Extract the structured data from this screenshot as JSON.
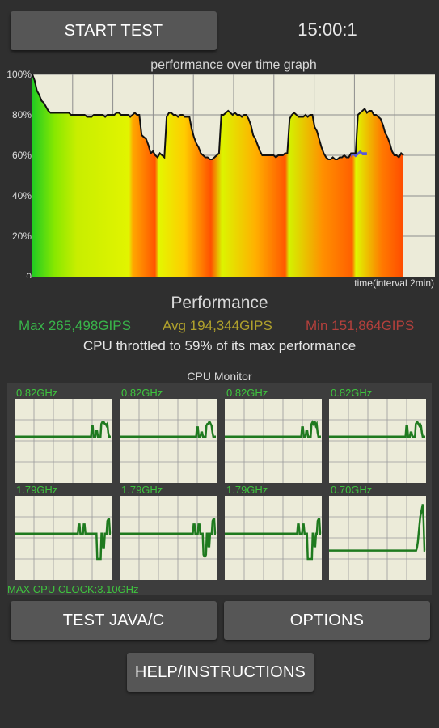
{
  "header": {
    "start_button": "START TEST",
    "timer": "15:00:1"
  },
  "graph": {
    "title": "performance over time graph",
    "y_ticks": [
      "100%",
      "80%",
      "60%",
      "40%",
      "20%",
      "0"
    ],
    "x_label": "time(interval 2min)"
  },
  "performance": {
    "title": "Performance",
    "max": "Max 265,498GIPS",
    "avg": "Avg 194,344GIPS",
    "min": "Min 151,864GIPS",
    "throttle_text": "CPU throttled to 59% of its max performance"
  },
  "chart_data": {
    "type": "line",
    "y_unit": "%",
    "ylim": [
      0,
      100
    ],
    "y": [
      100,
      97,
      92,
      90,
      87,
      86,
      84,
      82,
      81,
      81,
      81,
      81,
      81,
      81,
      81,
      81,
      81,
      80,
      80,
      80,
      80,
      80,
      80,
      80,
      79,
      79,
      79,
      80,
      80,
      80,
      80,
      80,
      79,
      80,
      80,
      80,
      80,
      81,
      81,
      80,
      80,
      80,
      80,
      79,
      80,
      81,
      80,
      80,
      70,
      69,
      68,
      65,
      61,
      62,
      60,
      59,
      61,
      60,
      59,
      79,
      81,
      81,
      80,
      80,
      79,
      80,
      80,
      79,
      79,
      79,
      73,
      69,
      66,
      64,
      61,
      60,
      59,
      59,
      58,
      58,
      59,
      60,
      61,
      80,
      80,
      81,
      82,
      81,
      80,
      81,
      80,
      80,
      79,
      80,
      80,
      78,
      75,
      70,
      68,
      65,
      62,
      60,
      60,
      60,
      60,
      60,
      60,
      59,
      60,
      60,
      60,
      61,
      61,
      78,
      80,
      81,
      80,
      79,
      79,
      79,
      80,
      79,
      80,
      80,
      74,
      72,
      68,
      64,
      61,
      59,
      58,
      58,
      59,
      58,
      58,
      59,
      59,
      60,
      59,
      59,
      61,
      61,
      61,
      80,
      81,
      82,
      83,
      81,
      82,
      82,
      80,
      80,
      79,
      78,
      75,
      71,
      69,
      66,
      62,
      60,
      60,
      59,
      61,
      60
    ],
    "throttle_series_y": [
      59,
      60,
      59,
      60,
      61,
      60,
      60,
      60
    ]
  },
  "cpu_monitor": {
    "title": "CPU Monitor",
    "cores": [
      {
        "freq": "0.82GHz",
        "trace": [
          0.55,
          0.55,
          0.55,
          0.55,
          0.55,
          0.55,
          0.55,
          0.55,
          0.55,
          0.55,
          0.55,
          0.55,
          0.55,
          0.55,
          0.55,
          0.55,
          0.55,
          0.55,
          0.55,
          0.55,
          0.55,
          0.55,
          0.55,
          0.55,
          0.55,
          0.55,
          0.55,
          0.55,
          0.55,
          0.55,
          0.55,
          0.55,
          0.55,
          0.55,
          0.55,
          0.55,
          0.55,
          0.55,
          0.55,
          0.55,
          0.55,
          0.55,
          0.55,
          0.55,
          0.55,
          0.55,
          0.55,
          0.55,
          0.55,
          0.55,
          0.55,
          0.55,
          0.55,
          0.55,
          0.55,
          0.55,
          0.55,
          0.55,
          0.55,
          0.55,
          0.55,
          0.55,
          0.55,
          0.55,
          0.55,
          0.55,
          0.55,
          0.55,
          0.55,
          0.55,
          0.55,
          0.55,
          0.55,
          0.55,
          0.55,
          0.55,
          0.55,
          0.55,
          0.55,
          0.55,
          0.55,
          0.55,
          0.55,
          0.55,
          0.55,
          0.55,
          0.55,
          0.55,
          0.55,
          0.55,
          0.67,
          0.67,
          0.55,
          0.55,
          0.55,
          0.62,
          0.62,
          0.55,
          0.55,
          0.55,
          0.55,
          0.7,
          0.72,
          0.72,
          0.72,
          0.7,
          0.7,
          0.68,
          0.7,
          0.6,
          0.55,
          0.55,
          0.55
        ]
      },
      {
        "freq": "0.82GHz",
        "trace": [
          0.55,
          0.55,
          0.55,
          0.55,
          0.55,
          0.55,
          0.55,
          0.55,
          0.55,
          0.55,
          0.55,
          0.55,
          0.55,
          0.55,
          0.55,
          0.55,
          0.55,
          0.55,
          0.55,
          0.55,
          0.55,
          0.55,
          0.55,
          0.55,
          0.55,
          0.55,
          0.55,
          0.55,
          0.55,
          0.55,
          0.55,
          0.55,
          0.55,
          0.55,
          0.55,
          0.55,
          0.55,
          0.55,
          0.55,
          0.55,
          0.55,
          0.55,
          0.55,
          0.55,
          0.55,
          0.55,
          0.55,
          0.55,
          0.55,
          0.55,
          0.55,
          0.55,
          0.55,
          0.55,
          0.55,
          0.55,
          0.55,
          0.55,
          0.55,
          0.55,
          0.55,
          0.55,
          0.55,
          0.55,
          0.55,
          0.55,
          0.55,
          0.55,
          0.55,
          0.55,
          0.55,
          0.55,
          0.55,
          0.55,
          0.55,
          0.55,
          0.55,
          0.55,
          0.55,
          0.55,
          0.55,
          0.55,
          0.55,
          0.55,
          0.55,
          0.55,
          0.55,
          0.55,
          0.55,
          0.55,
          0.66,
          0.66,
          0.55,
          0.55,
          0.55,
          0.6,
          0.6,
          0.55,
          0.55,
          0.55,
          0.55,
          0.68,
          0.7,
          0.7,
          0.72,
          0.72,
          0.7,
          0.68,
          0.6,
          0.55,
          0.55,
          0.55,
          0.55
        ]
      },
      {
        "freq": "0.82GHz",
        "trace": [
          0.55,
          0.55,
          0.55,
          0.55,
          0.55,
          0.55,
          0.55,
          0.55,
          0.55,
          0.55,
          0.55,
          0.55,
          0.55,
          0.55,
          0.55,
          0.55,
          0.55,
          0.55,
          0.55,
          0.55,
          0.55,
          0.55,
          0.55,
          0.55,
          0.55,
          0.55,
          0.55,
          0.55,
          0.55,
          0.55,
          0.55,
          0.55,
          0.55,
          0.55,
          0.55,
          0.55,
          0.55,
          0.55,
          0.55,
          0.55,
          0.55,
          0.55,
          0.55,
          0.55,
          0.55,
          0.55,
          0.55,
          0.55,
          0.55,
          0.55,
          0.55,
          0.55,
          0.55,
          0.55,
          0.55,
          0.55,
          0.55,
          0.55,
          0.55,
          0.55,
          0.55,
          0.55,
          0.55,
          0.55,
          0.55,
          0.55,
          0.55,
          0.55,
          0.55,
          0.55,
          0.55,
          0.55,
          0.55,
          0.55,
          0.55,
          0.55,
          0.55,
          0.55,
          0.55,
          0.55,
          0.55,
          0.55,
          0.55,
          0.55,
          0.55,
          0.55,
          0.55,
          0.55,
          0.55,
          0.55,
          0.66,
          0.66,
          0.55,
          0.55,
          0.55,
          0.62,
          0.62,
          0.55,
          0.55,
          0.55,
          0.55,
          0.7,
          0.72,
          0.7,
          0.72,
          0.72,
          0.68,
          0.7,
          0.6,
          0.55,
          0.55,
          0.55,
          0.55
        ]
      },
      {
        "freq": "0.82GHz",
        "trace": [
          0.55,
          0.55,
          0.55,
          0.55,
          0.55,
          0.55,
          0.55,
          0.55,
          0.55,
          0.55,
          0.55,
          0.55,
          0.55,
          0.55,
          0.55,
          0.55,
          0.55,
          0.55,
          0.55,
          0.55,
          0.55,
          0.55,
          0.55,
          0.55,
          0.55,
          0.55,
          0.55,
          0.55,
          0.55,
          0.55,
          0.55,
          0.55,
          0.55,
          0.55,
          0.55,
          0.55,
          0.55,
          0.55,
          0.55,
          0.55,
          0.55,
          0.55,
          0.55,
          0.55,
          0.55,
          0.55,
          0.55,
          0.55,
          0.55,
          0.55,
          0.55,
          0.55,
          0.55,
          0.55,
          0.55,
          0.55,
          0.55,
          0.55,
          0.55,
          0.55,
          0.55,
          0.55,
          0.55,
          0.55,
          0.55,
          0.55,
          0.55,
          0.55,
          0.55,
          0.55,
          0.55,
          0.55,
          0.55,
          0.55,
          0.55,
          0.55,
          0.55,
          0.55,
          0.55,
          0.55,
          0.55,
          0.55,
          0.55,
          0.55,
          0.55,
          0.55,
          0.55,
          0.55,
          0.55,
          0.55,
          0.67,
          0.67,
          0.55,
          0.55,
          0.55,
          0.6,
          0.6,
          0.55,
          0.55,
          0.55,
          0.55,
          0.7,
          0.72,
          0.72,
          0.7,
          0.68,
          0.7,
          0.68,
          0.6,
          0.55,
          0.55,
          0.55,
          0.55
        ]
      },
      {
        "freq": "1.79GHz",
        "trace": [
          0.55,
          0.55,
          0.55,
          0.55,
          0.55,
          0.55,
          0.55,
          0.55,
          0.55,
          0.55,
          0.55,
          0.55,
          0.55,
          0.55,
          0.55,
          0.55,
          0.55,
          0.55,
          0.55,
          0.55,
          0.55,
          0.55,
          0.55,
          0.55,
          0.55,
          0.55,
          0.55,
          0.55,
          0.55,
          0.55,
          0.55,
          0.55,
          0.55,
          0.55,
          0.55,
          0.55,
          0.55,
          0.55,
          0.55,
          0.55,
          0.55,
          0.55,
          0.55,
          0.55,
          0.55,
          0.55,
          0.55,
          0.55,
          0.55,
          0.55,
          0.55,
          0.55,
          0.55,
          0.55,
          0.55,
          0.55,
          0.55,
          0.55,
          0.55,
          0.55,
          0.55,
          0.55,
          0.55,
          0.55,
          0.55,
          0.55,
          0.55,
          0.55,
          0.55,
          0.55,
          0.55,
          0.55,
          0.55,
          0.55,
          0.55,
          0.55,
          0.66,
          0.66,
          0.55,
          0.55,
          0.55,
          0.55,
          0.66,
          0.66,
          0.55,
          0.55,
          0.55,
          0.55,
          0.55,
          0.55,
          0.55,
          0.55,
          0.55,
          0.55,
          0.55,
          0.55,
          0.55,
          0.55,
          0.25,
          0.25,
          0.25,
          0.25,
          0.25,
          0.55,
          0.55,
          0.38,
          0.38,
          0.55,
          0.55,
          0.55,
          0.7,
          0.72,
          0.72,
          0.55,
          0.55
        ]
      },
      {
        "freq": "1.79GHz",
        "trace": [
          0.55,
          0.55,
          0.55,
          0.55,
          0.55,
          0.55,
          0.55,
          0.55,
          0.55,
          0.55,
          0.55,
          0.55,
          0.55,
          0.55,
          0.55,
          0.55,
          0.55,
          0.55,
          0.55,
          0.55,
          0.55,
          0.55,
          0.55,
          0.55,
          0.55,
          0.55,
          0.55,
          0.55,
          0.55,
          0.55,
          0.55,
          0.55,
          0.55,
          0.55,
          0.55,
          0.55,
          0.55,
          0.55,
          0.55,
          0.55,
          0.55,
          0.55,
          0.55,
          0.55,
          0.55,
          0.55,
          0.55,
          0.55,
          0.55,
          0.55,
          0.55,
          0.55,
          0.55,
          0.55,
          0.55,
          0.55,
          0.55,
          0.55,
          0.55,
          0.55,
          0.55,
          0.55,
          0.55,
          0.55,
          0.55,
          0.55,
          0.55,
          0.55,
          0.55,
          0.55,
          0.55,
          0.55,
          0.55,
          0.55,
          0.55,
          0.55,
          0.55,
          0.55,
          0.55,
          0.55,
          0.55,
          0.55,
          0.55,
          0.55,
          0.55,
          0.55,
          0.55,
          0.55,
          0.55,
          0.55,
          0.66,
          0.66,
          0.55,
          0.55,
          0.55,
          0.55,
          0.66,
          0.66,
          0.55,
          0.55,
          0.55,
          0.55,
          0.3,
          0.28,
          0.28,
          0.3,
          0.55,
          0.55,
          0.4,
          0.4,
          0.55,
          0.55,
          0.55,
          0.7,
          0.72,
          0.72,
          0.55,
          0.55
        ]
      },
      {
        "freq": "1.79GHz",
        "trace": [
          0.55,
          0.55,
          0.55,
          0.55,
          0.55,
          0.55,
          0.55,
          0.55,
          0.55,
          0.55,
          0.55,
          0.55,
          0.55,
          0.55,
          0.55,
          0.55,
          0.55,
          0.55,
          0.55,
          0.55,
          0.55,
          0.55,
          0.55,
          0.55,
          0.55,
          0.55,
          0.55,
          0.55,
          0.55,
          0.55,
          0.55,
          0.55,
          0.55,
          0.55,
          0.55,
          0.55,
          0.55,
          0.55,
          0.55,
          0.55,
          0.55,
          0.55,
          0.55,
          0.55,
          0.55,
          0.55,
          0.55,
          0.55,
          0.55,
          0.55,
          0.55,
          0.55,
          0.55,
          0.55,
          0.55,
          0.55,
          0.55,
          0.55,
          0.55,
          0.55,
          0.55,
          0.55,
          0.55,
          0.55,
          0.55,
          0.55,
          0.55,
          0.55,
          0.55,
          0.55,
          0.55,
          0.55,
          0.55,
          0.55,
          0.55,
          0.55,
          0.55,
          0.55,
          0.55,
          0.55,
          0.55,
          0.55,
          0.55,
          0.55,
          0.55,
          0.55,
          0.55,
          0.55,
          0.55,
          0.66,
          0.66,
          0.55,
          0.55,
          0.55,
          0.55,
          0.66,
          0.66,
          0.55,
          0.55,
          0.55,
          0.55,
          0.25,
          0.25,
          0.25,
          0.25,
          0.25,
          0.25,
          0.55,
          0.55,
          0.4,
          0.4,
          0.55,
          0.55,
          0.7,
          0.72,
          0.72,
          0.55,
          0.55
        ]
      },
      {
        "freq": "0.70GHz",
        "trace": [
          0.35,
          0.35,
          0.35,
          0.35,
          0.35,
          0.35,
          0.35,
          0.35,
          0.35,
          0.35,
          0.35,
          0.35,
          0.35,
          0.35,
          0.35,
          0.35,
          0.35,
          0.35,
          0.35,
          0.35,
          0.35,
          0.35,
          0.35,
          0.35,
          0.35,
          0.35,
          0.35,
          0.35,
          0.35,
          0.35,
          0.35,
          0.35,
          0.35,
          0.35,
          0.35,
          0.35,
          0.35,
          0.35,
          0.35,
          0.35,
          0.35,
          0.35,
          0.35,
          0.35,
          0.35,
          0.35,
          0.35,
          0.35,
          0.35,
          0.35,
          0.35,
          0.35,
          0.35,
          0.35,
          0.35,
          0.35,
          0.35,
          0.35,
          0.35,
          0.35,
          0.35,
          0.35,
          0.35,
          0.35,
          0.35,
          0.35,
          0.35,
          0.35,
          0.35,
          0.35,
          0.35,
          0.35,
          0.35,
          0.35,
          0.35,
          0.35,
          0.35,
          0.35,
          0.35,
          0.35,
          0.35,
          0.35,
          0.35,
          0.35,
          0.35,
          0.35,
          0.35,
          0.35,
          0.35,
          0.35,
          0.35,
          0.35,
          0.35,
          0.35,
          0.35,
          0.35,
          0.35,
          0.35,
          0.35,
          0.35,
          0.35,
          0.35,
          0.35,
          0.35,
          0.35,
          0.35,
          0.38,
          0.45,
          0.55,
          0.65,
          0.75,
          0.8,
          0.85,
          0.9,
          0.7,
          0.35,
          0.35
        ]
      }
    ],
    "max_clock": "MAX CPU CLOCK:3.10GHz"
  },
  "buttons": {
    "test_java": "TEST JAVA/C",
    "options": "OPTIONS",
    "help": "HELP/INSTRUCTIONS"
  }
}
